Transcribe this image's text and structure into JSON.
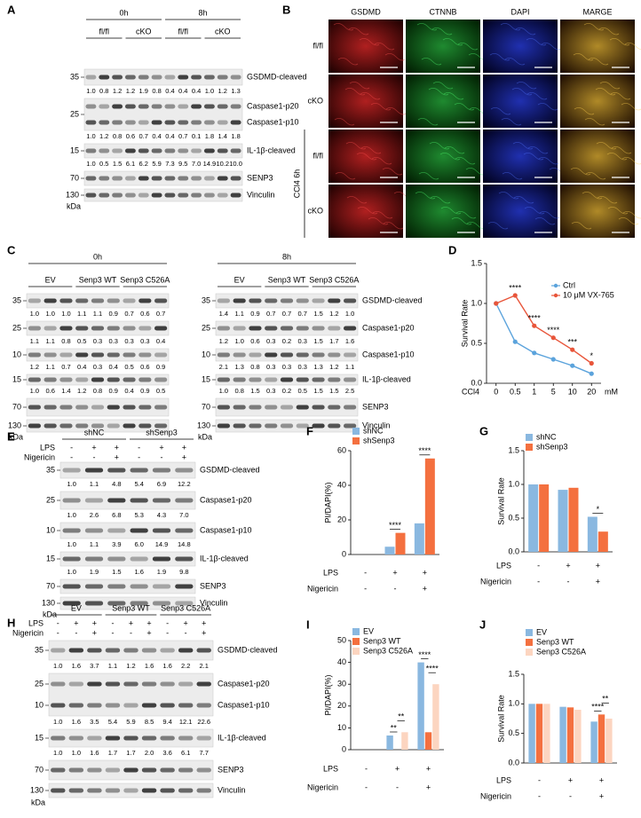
{
  "panel_a": {
    "label": "A",
    "groups": [
      {
        "name": "0h",
        "subgroups": [
          "fl/fl",
          "cKO"
        ]
      },
      {
        "name": "8h",
        "subgroups": [
          "fl/fl",
          "cKO"
        ]
      }
    ],
    "rows": [
      {
        "labels": [
          "GSDMD-cleaved"
        ],
        "markers": [
          "35"
        ],
        "quant": [
          "1.0",
          "0.8",
          "1.2",
          "1.2",
          "1.9",
          "0.8",
          "0.4",
          "0.4",
          "0.4",
          "1.0",
          "1.2",
          "1.3"
        ]
      },
      {
        "labels": [
          "Caspase1-p20",
          "Caspase1-p10"
        ],
        "markers": [
          "25"
        ],
        "quant": [
          "1.0",
          "1.2",
          "0.8",
          "0.6",
          "0.7",
          "0.4",
          "0.4",
          "0.7",
          "0.1",
          "1.8",
          "1.4",
          "1.8"
        ]
      },
      {
        "labels": [
          "IL-1β-cleaved"
        ],
        "markers": [
          "15"
        ],
        "quant": [
          "1.0",
          "0.5",
          "1.5",
          "6.1",
          "6.2",
          "5.9",
          "7.3",
          "9.5",
          "7.0",
          "14.9",
          "10.2",
          "10.0"
        ]
      },
      {
        "labels": [
          "SENP3"
        ],
        "markers": [
          "70"
        ]
      },
      {
        "labels": [
          "Vinculin"
        ],
        "markers": [
          "130"
        ]
      }
    ],
    "unit": "kDa"
  },
  "panel_b": {
    "label": "B",
    "columns": [
      {
        "name": "GSDMD",
        "color": "#e02020"
      },
      {
        "name": "CTNNB",
        "color": "#1f9e3a"
      },
      {
        "name": "DAPI",
        "color": "#2040d0"
      },
      {
        "name": "MARGE",
        "color": "#000000"
      }
    ],
    "rows": [
      "fl/fl",
      "cKO",
      "fl/fl",
      "cKO"
    ],
    "side_label": "CCl4 6h"
  },
  "panel_c": {
    "label": "C",
    "blots": [
      {
        "time": "0h",
        "groups": [
          "EV",
          "Senp3 WT",
          "Senp3 C526A"
        ],
        "rows": [
          {
            "markers": [
              "35"
            ],
            "quant": [
              "1.0",
              "1.0",
              "1.0",
              "1.1",
              "1.1",
              "0.9",
              "0.7",
              "0.6",
              "0.7"
            ]
          },
          {
            "markers": [
              "25"
            ],
            "quant": [
              "1.1",
              "1.1",
              "0.8",
              "0.5",
              "0.3",
              "0.3",
              "0.3",
              "0.3",
              "0.4"
            ]
          },
          {
            "markers": [
              "10"
            ],
            "quant": [
              "1.2",
              "1.1",
              "0.7",
              "0.4",
              "0.3",
              "0.4",
              "0.5",
              "0.6",
              "0.9"
            ]
          },
          {
            "markers": [
              "15"
            ],
            "quant": [
              "1.0",
              "0.6",
              "1.4",
              "1.2",
              "0.8",
              "0.9",
              "0.4",
              "0.9",
              "0.5"
            ]
          },
          {
            "markers": [
              "70"
            ]
          },
          {
            "markers": [
              "130"
            ]
          }
        ],
        "unit": "kDa"
      },
      {
        "time": "8h",
        "groups": [
          "EV",
          "Senp3 WT",
          "Senp3 C526A"
        ],
        "rows": [
          {
            "labels": [
              "GSDMD-cleaved"
            ],
            "markers": [
              "35"
            ],
            "quant": [
              "1.4",
              "1.1",
              "0.9",
              "0.7",
              "0.7",
              "0.7",
              "1.5",
              "1.2",
              "1.0"
            ]
          },
          {
            "labels": [
              "Caspase1-p20"
            ],
            "markers": [
              "25"
            ],
            "quant": [
              "1.2",
              "1.0",
              "0.6",
              "0.3",
              "0.2",
              "0.3",
              "1.5",
              "1.7",
              "1.6"
            ]
          },
          {
            "labels": [
              "Caspase1-p10"
            ],
            "markers": [
              "10"
            ],
            "quant": [
              "2.1",
              "1.3",
              "0.8",
              "0.3",
              "0.3",
              "0.3",
              "1.3",
              "1.2",
              "1.1"
            ]
          },
          {
            "labels": [
              "IL-1β-cleaved"
            ],
            "markers": [
              "15"
            ],
            "quant": [
              "1.0",
              "0.8",
              "1.5",
              "0.3",
              "0.2",
              "0.5",
              "1.5",
              "1.5",
              "2.5"
            ]
          },
          {
            "labels": [
              "SENP3"
            ],
            "markers": [
              "70"
            ]
          },
          {
            "labels": [
              "Vinculin"
            ],
            "markers": [
              "130"
            ]
          }
        ],
        "unit": "kDa"
      }
    ]
  },
  "panel_e": {
    "label": "E",
    "groups": [
      "shNC",
      "shSenp3"
    ],
    "treatments": [
      {
        "name": "LPS",
        "signs": [
          "-",
          "+",
          "+",
          "-",
          "+",
          "+"
        ]
      },
      {
        "name": "Nigericin",
        "signs": [
          "-",
          "-",
          "+",
          "-",
          "-",
          "+"
        ]
      }
    ],
    "rows": [
      {
        "labels": [
          "GSDMD-cleaved"
        ],
        "markers": [
          "35"
        ],
        "quant": [
          "1.0",
          "1.1",
          "4.8",
          "5.4",
          "6.9",
          "12.2"
        ]
      },
      {
        "labels": [
          "Caspase1-p20"
        ],
        "markers": [
          "25"
        ],
        "quant": [
          "1.0",
          "2.6",
          "6.8",
          "5.3",
          "4.3",
          "7.0"
        ]
      },
      {
        "labels": [
          "Caspase1-p10"
        ],
        "markers": [
          "10"
        ],
        "quant": [
          "1.0",
          "1.1",
          "3.9",
          "6.0",
          "14.9",
          "14.8"
        ]
      },
      {
        "labels": [
          "IL-1β-cleaved"
        ],
        "markers": [
          "15"
        ],
        "quant": [
          "1.0",
          "1.9",
          "1.5",
          "1.6",
          "1.9",
          "9.8"
        ]
      },
      {
        "labels": [
          "SENP3"
        ],
        "markers": [
          "70"
        ]
      },
      {
        "labels": [
          "Vinculin"
        ],
        "markers": [
          "130"
        ]
      }
    ],
    "unit": "kDa"
  },
  "panel_h": {
    "label": "H",
    "groups": [
      "EV",
      "Senp3 WT",
      "Senp3 C526A"
    ],
    "treatments": [
      {
        "name": "LPS",
        "signs": [
          "-",
          "+",
          "+",
          "-",
          "+",
          "+",
          "-",
          "+",
          "+"
        ]
      },
      {
        "name": "Nigericin",
        "signs": [
          "-",
          "-",
          "+",
          "-",
          "-",
          "+",
          "-",
          "-",
          "+"
        ]
      }
    ],
    "rows": [
      {
        "labels": [
          "GSDMD-cleaved"
        ],
        "markers": [
          "35"
        ],
        "quant": [
          "1.0",
          "1.6",
          "3.7",
          "1.1",
          "1.2",
          "1.6",
          "1.6",
          "2.2",
          "2.1"
        ]
      },
      {
        "labels": [
          "Caspase1-p20",
          "Caspase1-p10"
        ],
        "markers": [
          "25",
          "10"
        ],
        "quant": [
          "1.0",
          "1.6",
          "3.5",
          "5.4",
          "5.9",
          "8.5",
          "9.4",
          "12.1",
          "22.6"
        ]
      },
      {
        "labels": [
          "IL-1β-cleaved"
        ],
        "markers": [
          "15"
        ],
        "quant": [
          "1.0",
          "1.0",
          "1.6",
          "1.7",
          "1.7",
          "2.0",
          "3.6",
          "6.1",
          "7.7"
        ]
      },
      {
        "labels": [
          "SENP3"
        ],
        "markers": [
          "70"
        ]
      },
      {
        "labels": [
          "Vinculin"
        ],
        "markers": [
          "130"
        ]
      }
    ],
    "unit": "kDa"
  },
  "chart_data": [
    {
      "panel": "D",
      "type": "line",
      "ylabel": "Survival Rate",
      "xlabel": "CCl4",
      "xunit": "mM",
      "categories": [
        "0",
        "0.5",
        "1",
        "5",
        "10",
        "20"
      ],
      "series": [
        {
          "name": "Ctrl",
          "color": "#5ba3dc",
          "values": [
            1.0,
            0.52,
            0.38,
            0.3,
            0.22,
            0.12
          ]
        },
        {
          "name": "10 μM VX-765",
          "color": "#e8553a",
          "values": [
            1.0,
            1.1,
            0.72,
            0.57,
            0.42,
            0.25
          ]
        }
      ],
      "ylim": [
        0,
        1.5
      ],
      "yticks": [
        {
          "value": 0,
          "label": "0.0"
        },
        0.5,
        {
          "value": 1,
          "label": "1.0"
        },
        1.5
      ],
      "legend": "upper right",
      "annotations": [
        {
          "text": "****",
          "category": 1
        },
        {
          "text": "****",
          "category": 2
        },
        {
          "text": "****",
          "category": 3
        },
        {
          "text": "***",
          "category": 4
        },
        {
          "text": "*",
          "category": 5
        }
      ]
    },
    {
      "panel": "F",
      "type": "bar",
      "ylabel": "PI/DAPI(%)",
      "categories": [
        null,
        null,
        null
      ],
      "series": [
        {
          "name": "shNC",
          "color": "#8ab8e0",
          "values": [
            0,
            4.5,
            18
          ]
        },
        {
          "name": "shSenp3",
          "color": "#f4703f",
          "values": [
            0,
            12.5,
            55.5
          ]
        }
      ],
      "ylim": [
        0,
        60
      ],
      "yticks": [
        0,
        20,
        40,
        60
      ],
      "legend": "upper left",
      "conditions": [
        {
          "name": "LPS",
          "signs": [
            "-",
            "+",
            "+"
          ]
        },
        {
          "name": "Nigericin",
          "signs": [
            "-",
            "-",
            "+"
          ]
        }
      ],
      "annotations": [
        {
          "text": "****",
          "category": 1,
          "series": [
            0,
            1
          ]
        },
        {
          "text": "****",
          "category": 2,
          "series": [
            0,
            1
          ]
        }
      ]
    },
    {
      "panel": "G",
      "type": "bar",
      "ylabel": "Survival Rate",
      "categories": [
        null,
        null,
        null
      ],
      "series": [
        {
          "name": "shNC",
          "color": "#8ab8e0",
          "values": [
            1.0,
            0.92,
            0.52
          ]
        },
        {
          "name": "shSenp3",
          "color": "#f4703f",
          "values": [
            1.0,
            0.95,
            0.3
          ]
        }
      ],
      "ylim": [
        0,
        1.5
      ],
      "yticks": [
        {
          "value": 0,
          "label": "0.0"
        },
        0.5,
        {
          "value": 1,
          "label": "1.0"
        },
        1.5
      ],
      "legend": "upper left",
      "conditions": [
        {
          "name": "LPS",
          "signs": [
            "-",
            "+",
            "+"
          ]
        },
        {
          "name": "Nigericin",
          "signs": [
            "-",
            "-",
            "+"
          ]
        }
      ],
      "annotations": [
        {
          "text": "*",
          "category": 2,
          "series": [
            0,
            1
          ]
        }
      ]
    },
    {
      "panel": "I",
      "type": "bar",
      "ylabel": "PI/DAPI(%)",
      "categories": [
        null,
        null,
        null
      ],
      "series": [
        {
          "name": "EV",
          "color": "#8ab8e0",
          "values": [
            0,
            6.5,
            40
          ]
        },
        {
          "name": "Senp3 WT",
          "color": "#f4703f",
          "values": [
            0,
            0,
            8
          ]
        },
        {
          "name": "Senp3 C526A",
          "color": "#fcd5c0",
          "values": [
            0,
            8,
            30
          ]
        }
      ],
      "ylim": [
        0,
        50
      ],
      "yticks": [
        0,
        10,
        20,
        30,
        40,
        50
      ],
      "legend": "upper left",
      "conditions": [
        {
          "name": "LPS",
          "signs": [
            "-",
            "+",
            "+"
          ]
        },
        {
          "name": "Nigericin",
          "signs": [
            "-",
            "-",
            "+"
          ]
        }
      ],
      "annotations": [
        {
          "text": "**",
          "category": 1,
          "series": [
            0,
            1
          ]
        },
        {
          "text": "**",
          "category": 1,
          "series": [
            1,
            2
          ]
        },
        {
          "text": "****",
          "category": 2,
          "series": [
            0,
            1
          ]
        },
        {
          "text": "****",
          "category": 2,
          "series": [
            1,
            2
          ]
        }
      ]
    },
    {
      "panel": "J",
      "type": "bar",
      "ylabel": "Survival Rate",
      "categories": [
        null,
        null,
        null
      ],
      "series": [
        {
          "name": "EV",
          "color": "#8ab8e0",
          "values": [
            1.0,
            0.95,
            0.7
          ]
        },
        {
          "name": "Senp3 WT",
          "color": "#f4703f",
          "values": [
            1.0,
            0.94,
            0.82
          ]
        },
        {
          "name": "Senp3 C526A",
          "color": "#fcd5c0",
          "values": [
            1.0,
            0.9,
            0.75
          ]
        }
      ],
      "ylim": [
        0,
        1.5
      ],
      "yticks": [
        {
          "value": 0,
          "label": "0.0"
        },
        0.5,
        {
          "value": 1,
          "label": "1.0"
        },
        1.5
      ],
      "legend": "upper left",
      "conditions": [
        {
          "name": "LPS",
          "signs": [
            "-",
            "+",
            "+"
          ]
        },
        {
          "name": "Nigericin",
          "signs": [
            "-",
            "-",
            "+"
          ]
        }
      ],
      "annotations": [
        {
          "text": "****",
          "category": 2,
          "series": [
            0,
            1
          ]
        },
        {
          "text": "**",
          "category": 2,
          "series": [
            1,
            2
          ]
        }
      ]
    }
  ]
}
